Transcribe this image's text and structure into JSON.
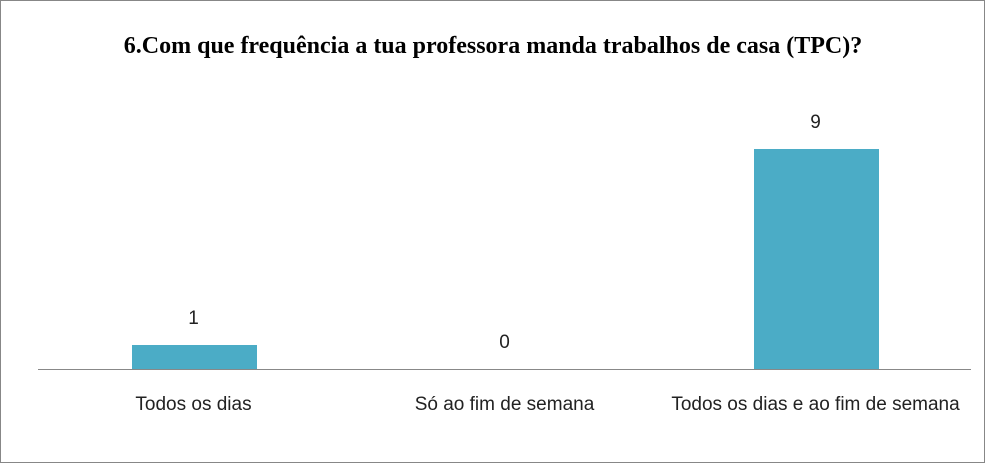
{
  "chart_data": {
    "type": "bar",
    "title": "6.Com que frequência a tua professora manda trabalhos de casa (TPC)?",
    "categories": [
      "Todos os dias",
      "Só ao fim de semana",
      "Todos os dias e ao fim de semana"
    ],
    "values": [
      1,
      0,
      9
    ],
    "color": "#4bacc6"
  }
}
